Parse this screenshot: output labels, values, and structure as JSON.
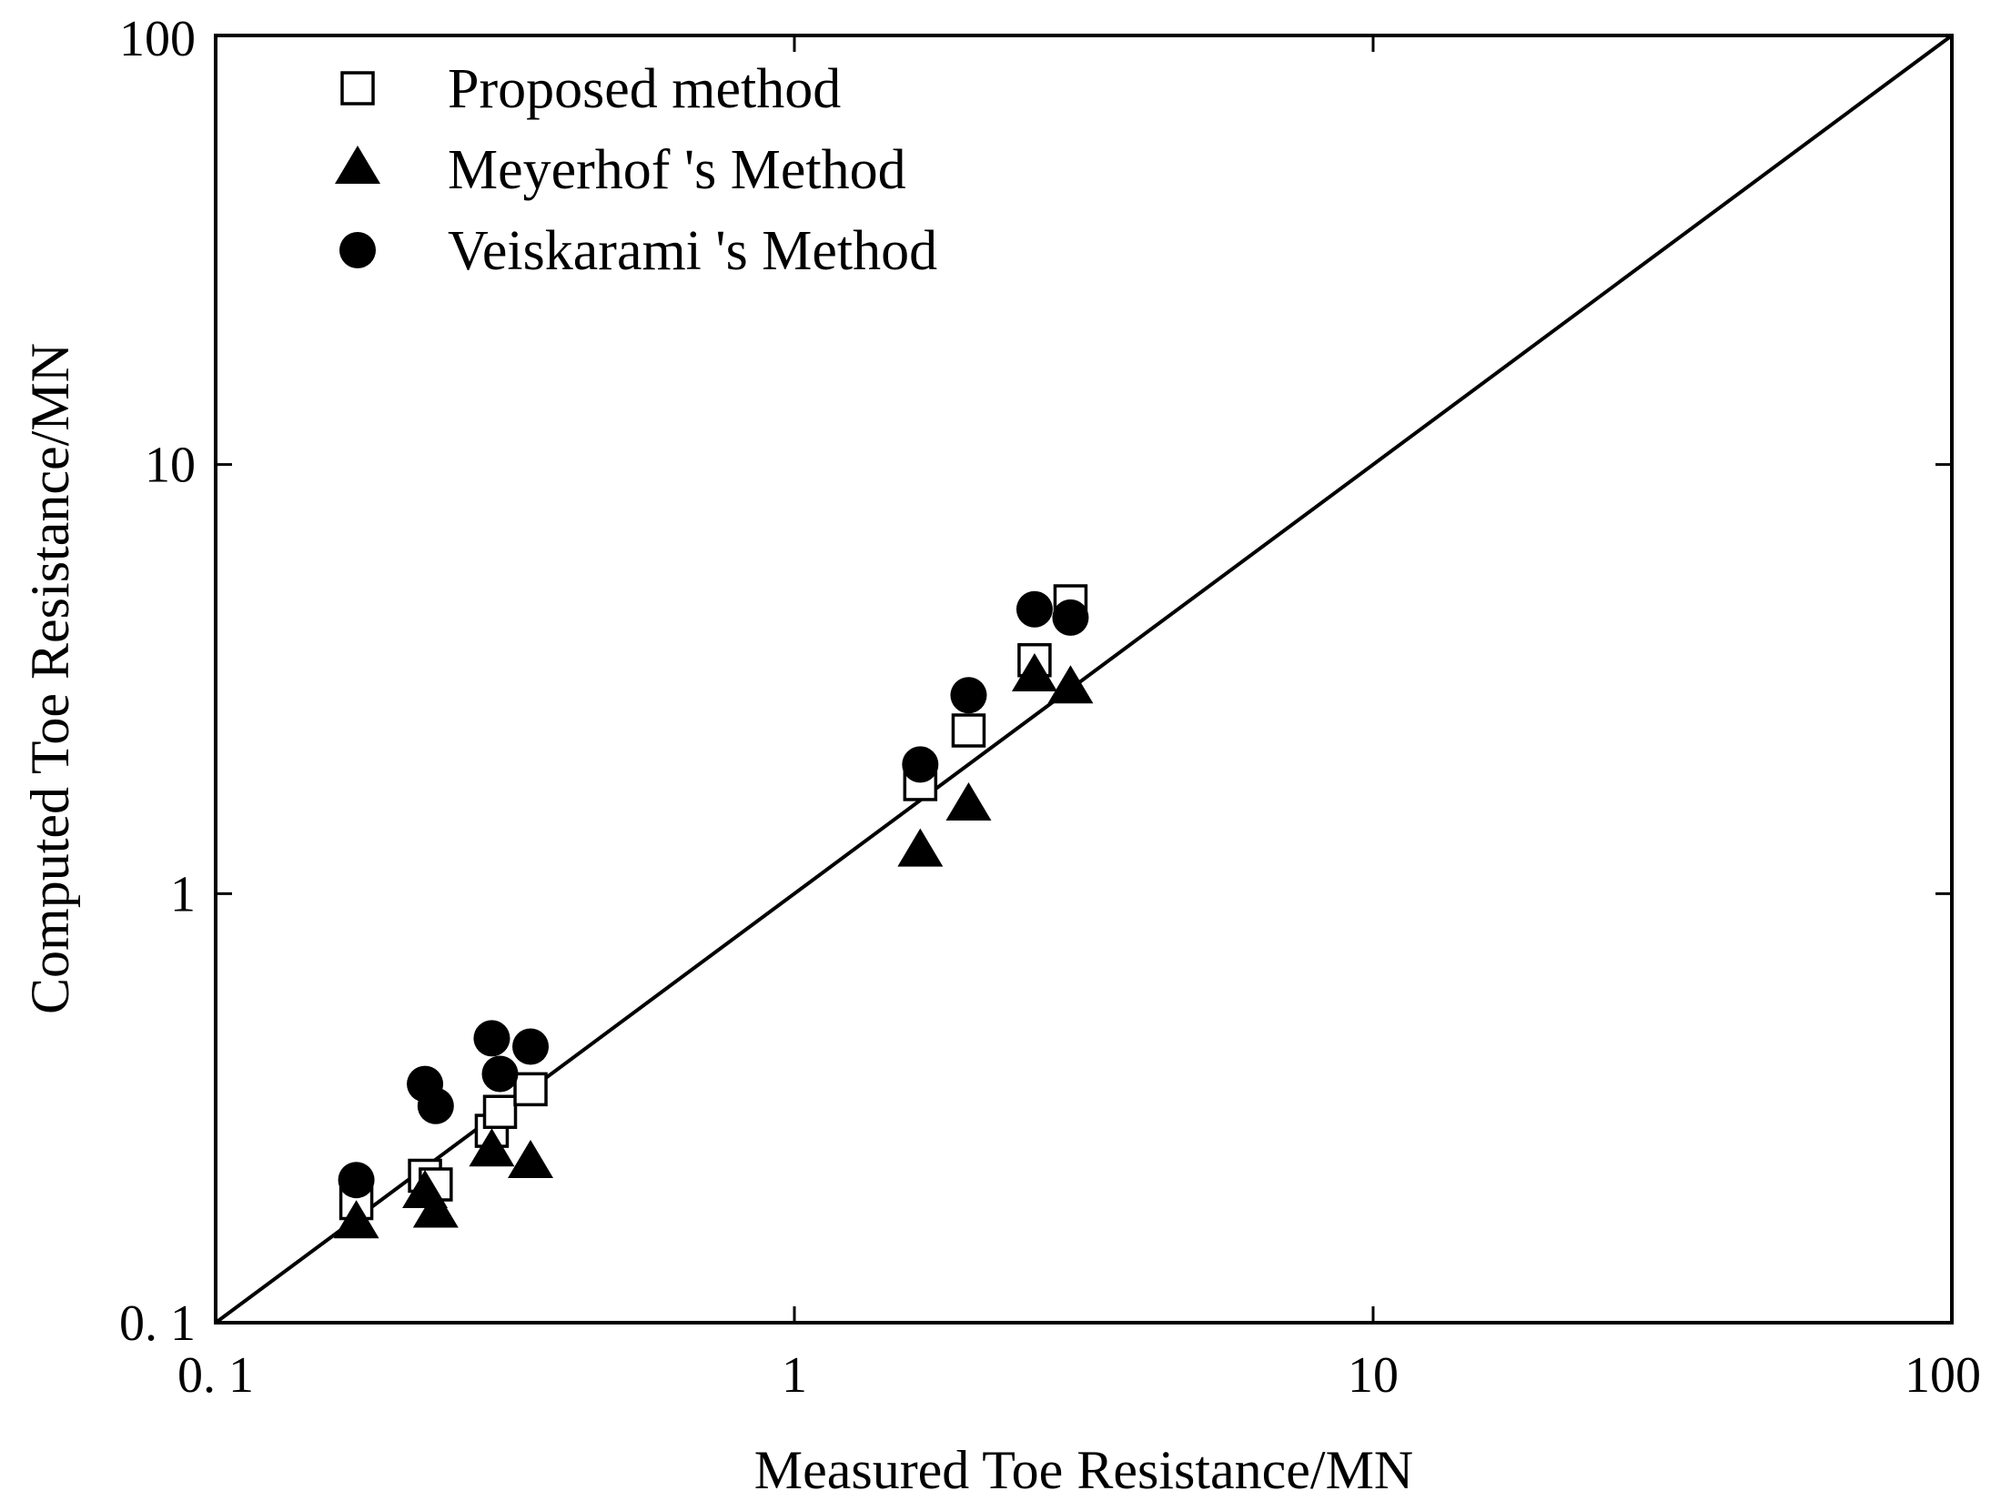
{
  "chart_data": {
    "type": "scatter",
    "xscale": "log",
    "yscale": "log",
    "xlabel": "Measured Toe Resistance/MN",
    "ylabel": "Computed Toe Resistance/MN",
    "xlim": [
      0.1,
      100
    ],
    "ylim": [
      0.1,
      100
    ],
    "x_ticks": [
      {
        "value": 0.1,
        "label": "0. 1"
      },
      {
        "value": 1,
        "label": "1"
      },
      {
        "value": 10,
        "label": "10"
      },
      {
        "value": 100,
        "label": "100"
      }
    ],
    "y_ticks": [
      {
        "value": 0.1,
        "label": "0. 1"
      },
      {
        "value": 1,
        "label": "1"
      },
      {
        "value": 10,
        "label": "10"
      },
      {
        "value": 100,
        "label": "100"
      }
    ],
    "grid": false,
    "legend_position": "top-left",
    "reference_line": {
      "name": "1:1 line",
      "x": [
        0.1,
        100
      ],
      "y": [
        0.1,
        100
      ]
    },
    "series": [
      {
        "name": "Proposed method",
        "marker": "open-square",
        "points": [
          {
            "x": 0.175,
            "y": 0.19
          },
          {
            "x": 0.23,
            "y": 0.22
          },
          {
            "x": 0.24,
            "y": 0.21
          },
          {
            "x": 0.3,
            "y": 0.28
          },
          {
            "x": 0.31,
            "y": 0.31
          },
          {
            "x": 0.35,
            "y": 0.35
          },
          {
            "x": 1.65,
            "y": 1.8
          },
          {
            "x": 2.0,
            "y": 2.4
          },
          {
            "x": 2.6,
            "y": 3.5
          },
          {
            "x": 3.0,
            "y": 4.8
          }
        ]
      },
      {
        "name": "Meyerhof 's Method",
        "marker": "filled-triangle",
        "points": [
          {
            "x": 0.175,
            "y": 0.17
          },
          {
            "x": 0.23,
            "y": 0.2
          },
          {
            "x": 0.24,
            "y": 0.18
          },
          {
            "x": 0.3,
            "y": 0.25
          },
          {
            "x": 0.35,
            "y": 0.235
          },
          {
            "x": 1.65,
            "y": 1.25
          },
          {
            "x": 2.0,
            "y": 1.6
          },
          {
            "x": 2.6,
            "y": 3.2
          },
          {
            "x": 3.0,
            "y": 3.0
          }
        ]
      },
      {
        "name": "Veiskarami 's Method",
        "marker": "filled-circle",
        "points": [
          {
            "x": 0.175,
            "y": 0.215
          },
          {
            "x": 0.23,
            "y": 0.36
          },
          {
            "x": 0.24,
            "y": 0.32
          },
          {
            "x": 0.3,
            "y": 0.46
          },
          {
            "x": 0.31,
            "y": 0.38
          },
          {
            "x": 0.35,
            "y": 0.44
          },
          {
            "x": 1.65,
            "y": 2.0
          },
          {
            "x": 2.0,
            "y": 2.9
          },
          {
            "x": 2.6,
            "y": 4.6
          },
          {
            "x": 3.0,
            "y": 4.4
          }
        ]
      }
    ]
  }
}
